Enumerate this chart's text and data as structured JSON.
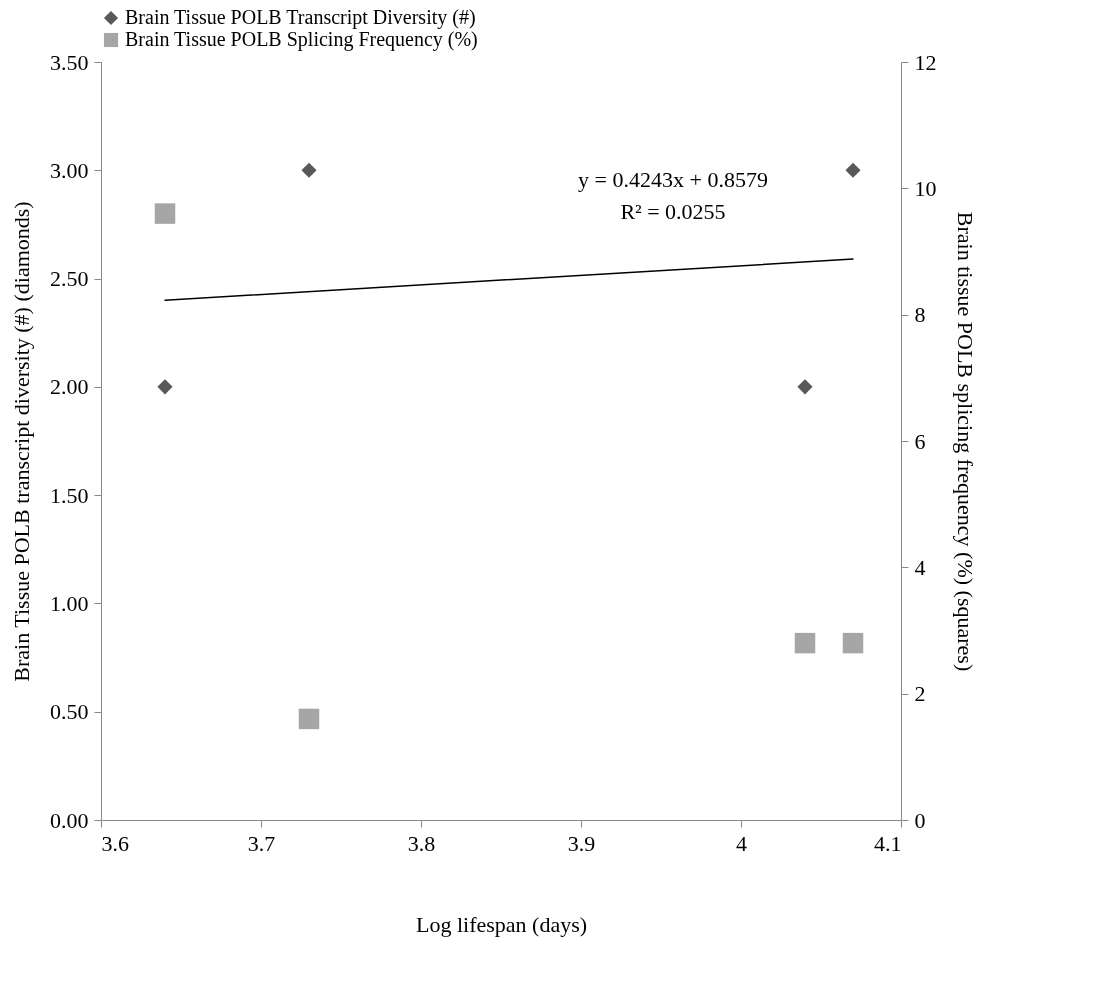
{
  "chart_data": {
    "type": "scatter",
    "xlabel": "Log lifespan (days)",
    "ylabel": "Brain Tissue POLB transcript diversity (#) (diamonds)",
    "y2label": "Brain tissue POLB splicing frequency (%) (squares)",
    "xlim": [
      3.6,
      4.1
    ],
    "xticks": [
      3.6,
      3.7,
      3.8,
      3.9,
      4,
      4.1
    ],
    "ylim": [
      0,
      3.5
    ],
    "yticks": [
      {
        "value": 0,
        "label": "0.00"
      },
      {
        "value": 0.5,
        "label": "0.50"
      },
      {
        "value": 1,
        "label": "1.00"
      },
      {
        "value": 1.5,
        "label": "1.50"
      },
      {
        "value": 2,
        "label": "2.00"
      },
      {
        "value": 2.5,
        "label": "2.50"
      },
      {
        "value": 3,
        "label": "3.00"
      },
      {
        "value": 3.5,
        "label": "3.50"
      }
    ],
    "y2lim": [
      0,
      12
    ],
    "y2ticks": [
      0,
      2,
      4,
      6,
      8,
      10,
      12
    ],
    "legend": "top left",
    "grid": false,
    "annotations": [
      "y = 0.4243x + 0.8579",
      "R² = 0.0255"
    ],
    "series": [
      {
        "name": "Brain Tissue POLB Transcript Diversity (#)",
        "color": "#595959",
        "marker": "diamond",
        "x": [
          3.64,
          3.73,
          4.04,
          4.07
        ],
        "values": [
          2,
          3,
          2,
          3
        ]
      },
      {
        "name": "Brain Tissue POLB Splicing Frequency (%)",
        "color": "#a6a6a6",
        "marker": "square",
        "axis": "y2",
        "x": [
          3.64,
          3.73,
          4.04,
          4.07
        ],
        "values": [
          9.6,
          1.6,
          2.8,
          2.8
        ]
      },
      {
        "type": "line",
        "color": "#000000",
        "x": [
          3.64,
          4.07
        ],
        "values": [
          2.4,
          2.59
        ]
      }
    ]
  }
}
